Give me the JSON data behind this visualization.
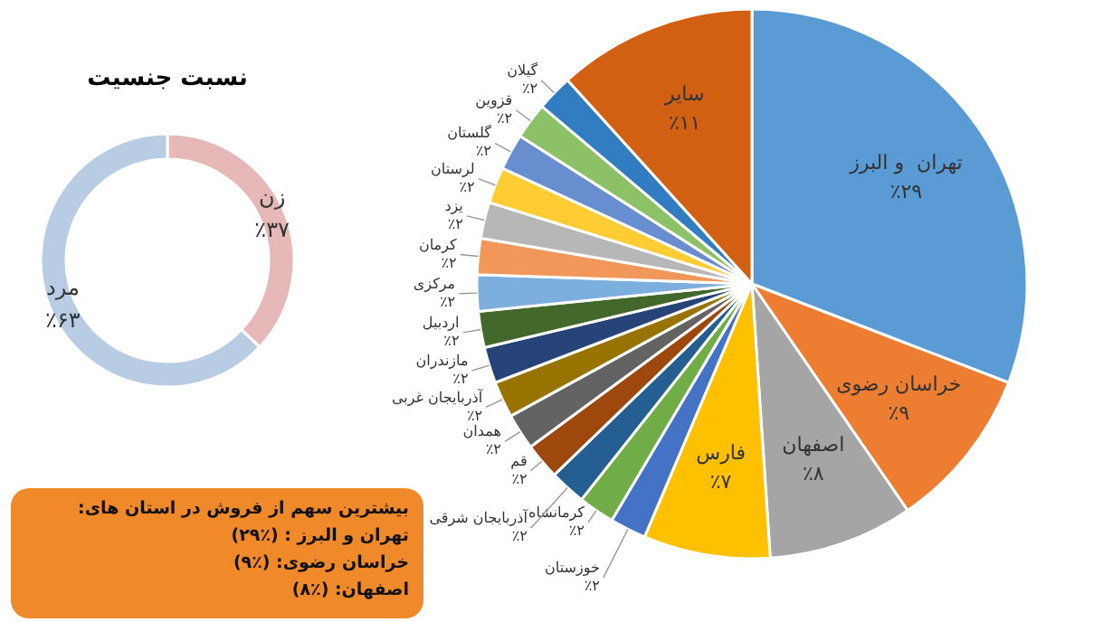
{
  "chart_data": [
    {
      "type": "donut",
      "title": "نسبت جنسیت",
      "categories": [
        "زن",
        "مرد"
      ],
      "values": [
        37,
        63
      ],
      "colors": [
        "#e6b8b7",
        "#b8cce4"
      ],
      "value_labels": [
        "٪۳۷",
        "٪۶۳"
      ]
    },
    {
      "type": "pie",
      "categories": [
        "تهران  و البرز",
        "خراسان رضوی",
        "اصفهان",
        "فارس",
        "خوزستان",
        "کرمانشاه",
        "آذربایجان شرقی",
        "قم",
        "همدان",
        "آذربایجان غربی",
        "مازندران",
        "اردبیل",
        "مرکزی",
        "کرمان",
        "یزد",
        "لرستان",
        "گلستان",
        "قزوین",
        "گیلان",
        "سایر"
      ],
      "values": [
        29,
        9,
        8,
        7,
        2,
        2,
        2,
        2,
        2,
        2,
        2,
        2,
        2,
        2,
        2,
        2,
        2,
        2,
        2,
        11
      ],
      "colors": [
        "#5b9bd5",
        "#ed7d31",
        "#a5a5a5",
        "#ffc000",
        "#4472c4",
        "#70ad47",
        "#255e91",
        "#9e480e",
        "#636363",
        "#997300",
        "#264478",
        "#43682b",
        "#7cafdd",
        "#f1975a",
        "#b7b7b7",
        "#ffcd33",
        "#698ed0",
        "#8cc168",
        "#327dc2",
        "#d26012"
      ],
      "value_labels": [
        "٪۲۹",
        "٪۹",
        "٪۸",
        "٪۷",
        "٪۲",
        "٪۲",
        "٪۲",
        "٪۲",
        "٪۲",
        "٪۲",
        "٪۲",
        "٪۲",
        "٪۲",
        "٪۲",
        "٪۲",
        "٪۲",
        "٪۲",
        "٪۲",
        "٪۲",
        "٪۱۱"
      ],
      "annotations": [
        "بیشترین سهم از فروش در استان های:\nتهران  و البرز : (٪۲۹)\nخراسان رضوی: (٪۹)\nاصفهان: (٪۸)"
      ]
    }
  ]
}
